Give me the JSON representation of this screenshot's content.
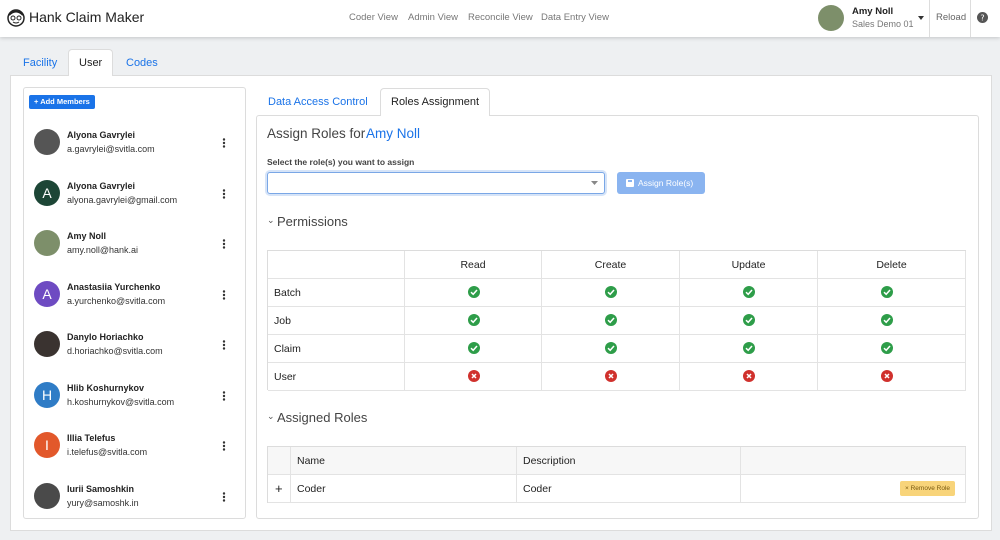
{
  "header": {
    "app_name": "Hank Claim Maker",
    "nav": [
      "Coder View",
      "Admin View",
      "Reconcile View",
      "Data Entry View"
    ],
    "user_name": "Amy Noll",
    "user_org": "Sales Demo 01",
    "reload": "Reload"
  },
  "tabs": {
    "items": [
      "Facility",
      "User",
      "Codes"
    ],
    "active": 1
  },
  "members": {
    "add_button": "Add Members",
    "items": [
      {
        "name": "Alyona Gavrylei",
        "email": "a.gavrylei@svitla.com",
        "avatar_color": "#555555"
      },
      {
        "name": "Alyona Gavrylei",
        "email": "alyona.gavrylei@gmail.com",
        "initial": "A",
        "avatar_color": "#1d4636"
      },
      {
        "name": "Amy Noll",
        "email": "amy.noll@hank.ai",
        "avatar_color": "#7d8f6a"
      },
      {
        "name": "Anastasiia Yurchenko",
        "email": "a.yurchenko@svitla.com",
        "initial": "A",
        "avatar_color": "#6e4bc2"
      },
      {
        "name": "Danylo Horiachko",
        "email": "d.horiachko@svitla.com",
        "avatar_color": "#3a3330"
      },
      {
        "name": "Hlib Koshurnykov",
        "email": "h.koshurnykov@svitla.com",
        "initial": "H",
        "avatar_color": "#2f7cc6"
      },
      {
        "name": "Illia Telefus",
        "email": "i.telefus@svitla.com",
        "initial": "I",
        "avatar_color": "#e2582b"
      },
      {
        "name": "Iurii Samoshkin",
        "email": "yury@samoshk.in",
        "avatar_color": "#4a4a4a"
      }
    ]
  },
  "panel": {
    "tabs": [
      "Data Access Control",
      "Roles Assignment"
    ],
    "active": 1,
    "heading": "Assign Roles for",
    "heading_user": "Amy Noll",
    "select_label": "Select the role(s) you want to assign",
    "assign_button": "Assign Role(s)",
    "permissions": {
      "title": "Permissions",
      "columns": [
        "Read",
        "Create",
        "Update",
        "Delete"
      ],
      "rows": [
        {
          "name": "Batch",
          "allowed": [
            true,
            true,
            true,
            true
          ]
        },
        {
          "name": "Job",
          "allowed": [
            true,
            true,
            true,
            true
          ]
        },
        {
          "name": "Claim",
          "allowed": [
            true,
            true,
            true,
            true
          ]
        },
        {
          "name": "User",
          "allowed": [
            false,
            false,
            false,
            false
          ]
        }
      ]
    },
    "assigned_roles": {
      "title": "Assigned Roles",
      "columns": [
        "Name",
        "Description"
      ],
      "rows": [
        {
          "expand": "+",
          "name": "Coder",
          "description": "Coder",
          "action": "Remove Role"
        }
      ]
    }
  }
}
